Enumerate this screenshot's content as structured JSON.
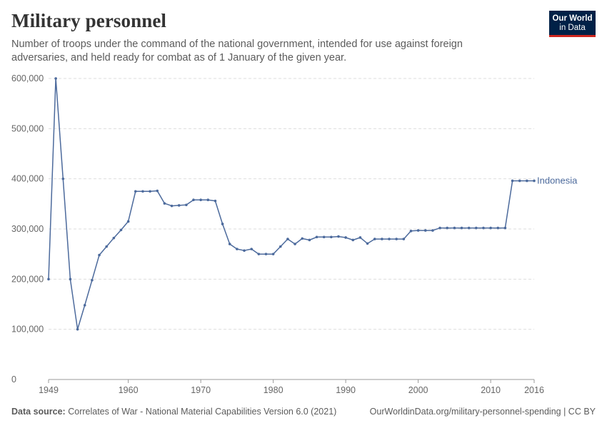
{
  "header": {
    "title": "Military personnel",
    "subtitle": "Number of troops under the command of the national government, intended for use against foreign adversaries, and held ready for combat as of 1 January of the given year.",
    "logo_line1": "Our World",
    "logo_line2": "in Data"
  },
  "footer": {
    "source_label": "Data source:",
    "source_text": "Correlates of War - National Material Capabilities Version 6.0 (2021)",
    "url_text": "OurWorldinData.org/military-personnel-spending | CC BY"
  },
  "colors": {
    "series": "#4c6a9c",
    "grid": "#dddddd",
    "axis": "#666666",
    "logo_bg": "#002147",
    "logo_accent": "#ce261e"
  },
  "chart_data": {
    "type": "line",
    "title": "Military personnel",
    "xlabel": "",
    "ylabel": "",
    "xlim": [
      1949,
      2016
    ],
    "ylim": [
      0,
      600000
    ],
    "y_ticks": [
      0,
      100000,
      200000,
      300000,
      400000,
      500000,
      600000
    ],
    "y_tick_labels": [
      "0",
      "100,000",
      "200,000",
      "300,000",
      "400,000",
      "500,000",
      "600,000"
    ],
    "x_ticks": [
      1949,
      1960,
      1970,
      1980,
      1990,
      2000,
      2010,
      2016
    ],
    "x_tick_labels": [
      "1949",
      "1960",
      "1970",
      "1980",
      "1990",
      "2000",
      "2010",
      "2016"
    ],
    "grid": "horizontal dashed",
    "series": [
      {
        "name": "Indonesia",
        "x": [
          1949,
          1950,
          1951,
          1952,
          1953,
          1954,
          1955,
          1956,
          1957,
          1958,
          1959,
          1960,
          1961,
          1962,
          1963,
          1964,
          1965,
          1966,
          1967,
          1968,
          1969,
          1970,
          1971,
          1972,
          1973,
          1974,
          1975,
          1976,
          1977,
          1978,
          1979,
          1980,
          1981,
          1982,
          1983,
          1984,
          1985,
          1986,
          1987,
          1988,
          1989,
          1990,
          1991,
          1992,
          1993,
          1994,
          1995,
          1996,
          1997,
          1998,
          1999,
          2000,
          2001,
          2002,
          2003,
          2004,
          2005,
          2006,
          2007,
          2008,
          2009,
          2010,
          2011,
          2012,
          2013,
          2014,
          2015,
          2016
        ],
        "y": [
          200000,
          600000,
          400000,
          200000,
          100000,
          148000,
          198000,
          248000,
          265000,
          282000,
          298000,
          315000,
          375000,
          375000,
          375000,
          376000,
          351000,
          346000,
          347000,
          348000,
          358000,
          358000,
          358000,
          356000,
          310000,
          270000,
          260000,
          257000,
          260000,
          250000,
          250000,
          250000,
          265000,
          280000,
          270000,
          281000,
          278000,
          284000,
          284000,
          284000,
          285000,
          283000,
          278000,
          283000,
          271000,
          280000,
          280000,
          280000,
          280000,
          280000,
          296000,
          297000,
          297000,
          297000,
          302000,
          302000,
          302000,
          302000,
          302000,
          302000,
          302000,
          302000,
          302000,
          302000,
          396000,
          396000,
          396000,
          396000
        ]
      }
    ]
  }
}
